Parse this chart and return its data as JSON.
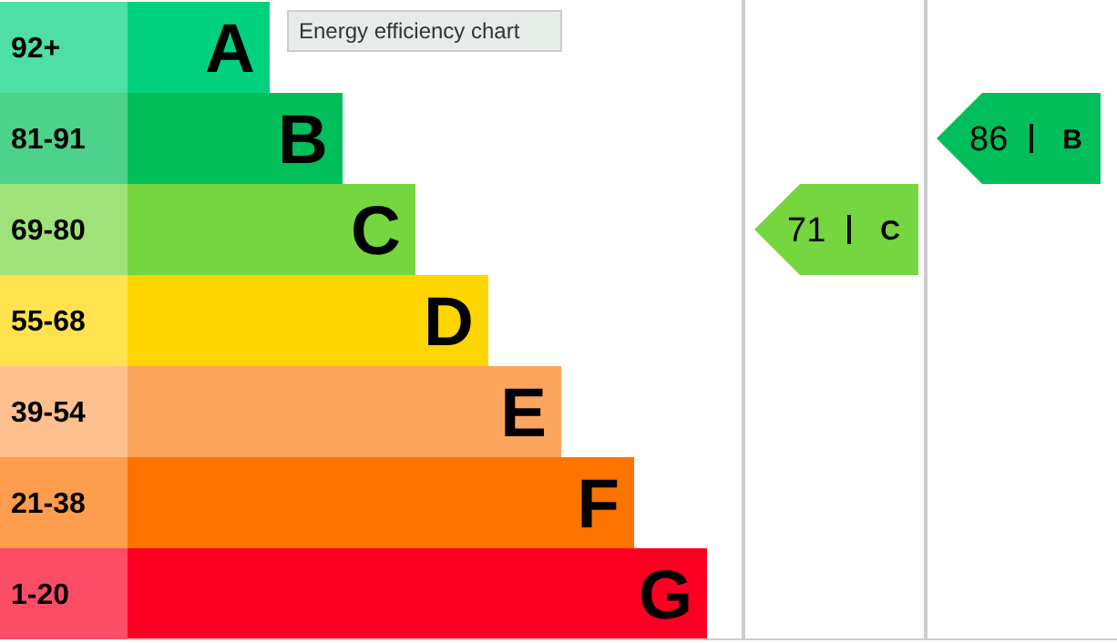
{
  "chart_data": {
    "type": "other",
    "title": "Energy efficiency chart",
    "categories": [
      "A",
      "B",
      "C",
      "D",
      "E",
      "F",
      "G"
    ],
    "value_labels": [
      "92+",
      "81-91",
      "69-80",
      "55-68",
      "39-54",
      "21-38",
      "1-20"
    ],
    "colors": [
      "#00d17f",
      "#00bf5a",
      "#75d63f",
      "#ffd500",
      "#fca55e",
      "#fc7300",
      "#fc0024"
    ],
    "data_labels": true,
    "series": [
      {
        "values": [
          null,
          null,
          71,
          null,
          null,
          null,
          null
        ],
        "color": "#75d63f"
      },
      {
        "values": [
          null,
          86,
          null,
          null,
          null,
          null,
          null
        ],
        "color": "#00bf5a"
      }
    ]
  }
}
